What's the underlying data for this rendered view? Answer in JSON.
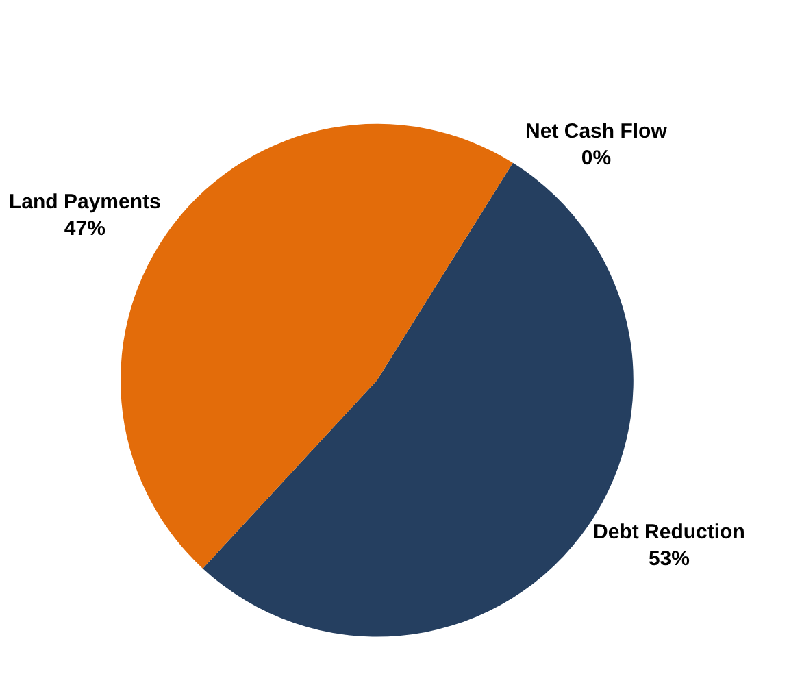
{
  "chart_data": {
    "type": "pie",
    "categories": [
      "Debt Reduction",
      "Land Payments",
      "Net Cash Flow"
    ],
    "values": [
      53,
      47,
      0
    ],
    "colors": [
      "#253f60",
      "#e36c0a",
      "#9bbb59"
    ],
    "value_labels": [
      "53%",
      "47%",
      "0%"
    ],
    "legend": false
  }
}
